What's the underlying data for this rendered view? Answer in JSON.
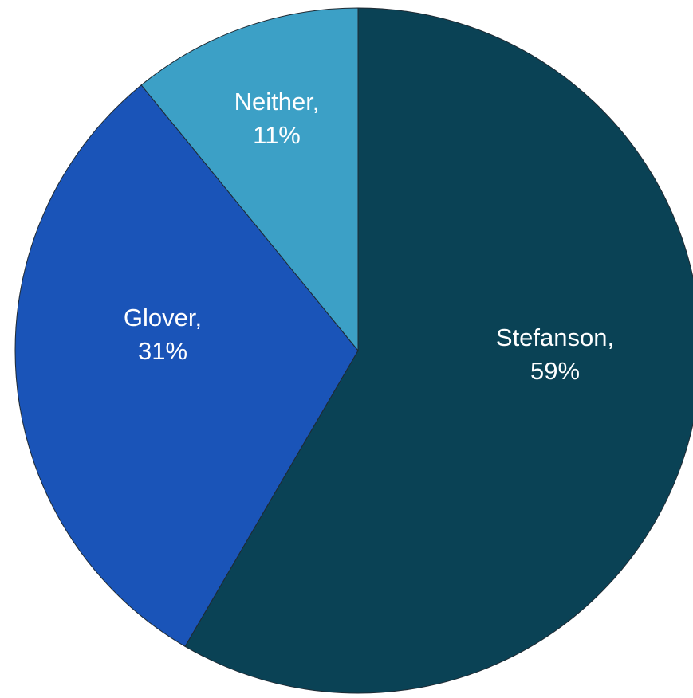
{
  "chart_data": {
    "type": "pie",
    "title": "",
    "slices": [
      {
        "name": "Stefanson",
        "percent_label": "59%",
        "value": 59,
        "color": "#0a4255"
      },
      {
        "name": "Glover",
        "percent_label": "31%",
        "value": 31,
        "color": "#1a54b8"
      },
      {
        "name": "Neither",
        "percent_label": "11%",
        "value": 11,
        "color": "#3ca0c6"
      }
    ],
    "start": "12 o'clock",
    "direction": "clockwise",
    "legend": "none",
    "labels": "inside slices, category name and percent"
  }
}
